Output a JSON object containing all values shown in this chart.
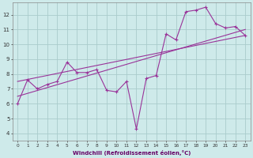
{
  "xlabel": "Windchill (Refroidissement éolien,°C)",
  "bg_color": "#ceeaea",
  "grid_color": "#aacccc",
  "line_color": "#993399",
  "xlim": [
    -0.5,
    23.5
  ],
  "ylim": [
    3.5,
    12.8
  ],
  "xticks": [
    0,
    1,
    2,
    3,
    4,
    5,
    6,
    7,
    8,
    9,
    10,
    11,
    12,
    13,
    14,
    15,
    16,
    17,
    18,
    19,
    20,
    21,
    22,
    23
  ],
  "yticks": [
    4,
    5,
    6,
    7,
    8,
    9,
    10,
    11,
    12
  ],
  "line1_x": [
    0,
    1,
    2,
    3,
    4,
    5,
    6,
    7,
    8,
    9,
    10,
    11,
    12,
    13,
    14,
    15,
    16,
    17,
    18,
    19,
    20,
    21,
    22,
    23
  ],
  "line1_y": [
    6.0,
    7.6,
    7.0,
    7.3,
    7.5,
    8.8,
    8.1,
    8.1,
    8.3,
    6.9,
    6.8,
    7.5,
    4.3,
    7.7,
    7.9,
    10.7,
    10.3,
    12.2,
    12.3,
    12.5,
    11.4,
    11.1,
    11.2,
    10.6
  ],
  "line2_x": [
    0,
    23
  ],
  "line2_y": [
    6.5,
    11.0
  ],
  "line3_x": [
    0,
    23
  ],
  "line3_y": [
    7.5,
    10.6
  ]
}
